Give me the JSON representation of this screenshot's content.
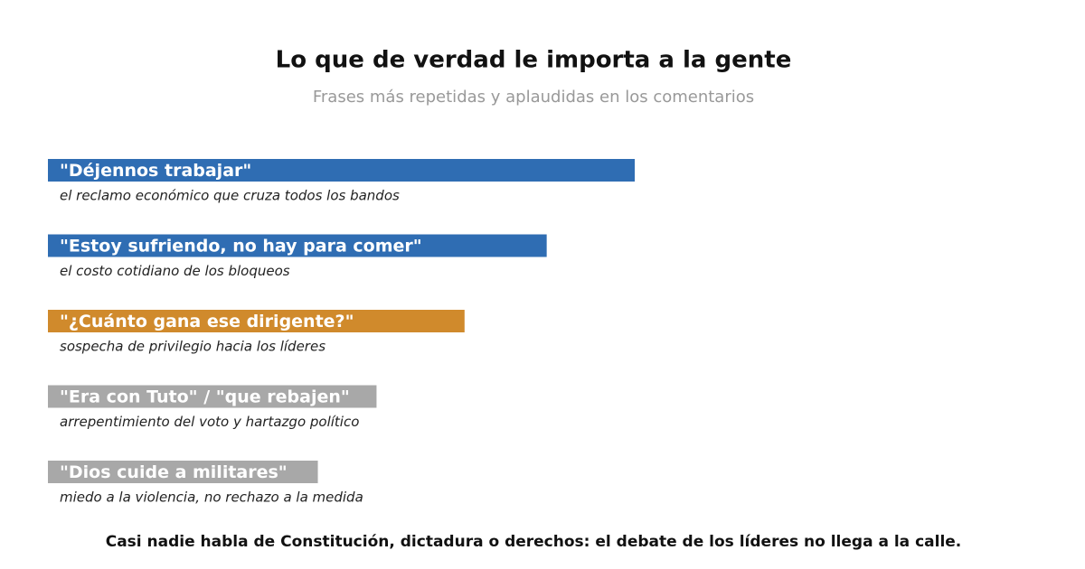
{
  "chart_data": {
    "type": "bar",
    "orientation": "horizontal",
    "title": "Lo que de verdad le importa a la gente",
    "subtitle": "Frases más repetidas y aplaudidas en los comentarios",
    "categories": [
      "\"Déjennos trabajar\"",
      "\"Estoy sufriendo, no hay para comer\"",
      "\"¿Cuánto gana ese dirigente?\"",
      "\"Era con Tuto\" / \"que rebajen\"",
      "\"Dios cuide a militares\""
    ],
    "descriptions": [
      "el reclamo económico que cruza todos los bandos",
      "el costo cotidiano de los bloqueos",
      "sospecha de privilegio hacia los líderes",
      "arrepentimiento del voto y hartazgo político",
      "miedo a la violencia, no rechazo a la medida"
    ],
    "values": [
      100,
      85,
      71,
      56,
      46
    ],
    "colors": [
      "#2f6db3",
      "#2f6db3",
      "#d08a2c",
      "#a8a8a8",
      "#a8a8a8"
    ],
    "xlim": [
      0,
      100
    ],
    "footnote": "Casi nadie habla de Constitución, dictadura o derechos: el debate de los líderes no llega a la calle."
  }
}
